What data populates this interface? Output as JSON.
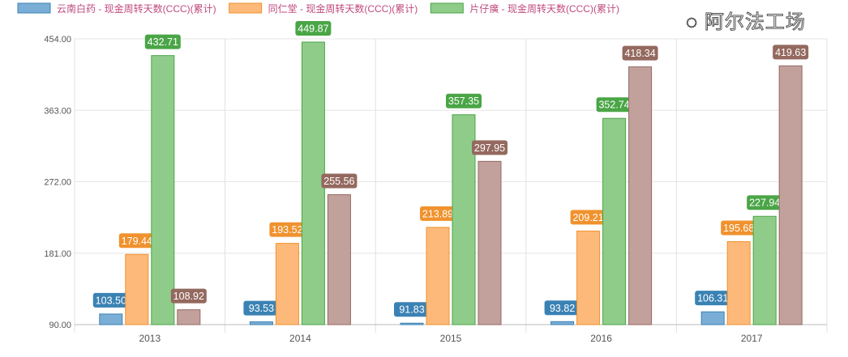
{
  "chart_data": {
    "type": "bar",
    "categories": [
      "2013",
      "2014",
      "2015",
      "2016",
      "2017"
    ],
    "ylim": [
      90,
      454
    ],
    "yticks": [
      "90.00",
      "181.00",
      "272.00",
      "363.00",
      "454.00"
    ],
    "grid": true,
    "legend_position": "top-left",
    "series": [
      {
        "name": "云南白药 - 现金周转天数(CCC)(累计)",
        "color": "#7aaed6",
        "label_color": "#3b82b4",
        "values": [
          103.5,
          93.53,
          91.83,
          93.82,
          106.31
        ]
      },
      {
        "name": "同仁堂 - 现金周转天数(CCC)(累计)",
        "color": "#fdb97a",
        "label_color": "#f0922e",
        "values": [
          179.44,
          193.52,
          213.89,
          209.21,
          195.68
        ]
      },
      {
        "name": "片仔癀 - 现金周转天数(CCC)(累计)",
        "color": "#8fcc8a",
        "label_color": "#4aa546",
        "values": [
          432.71,
          449.87,
          357.35,
          352.74,
          227.94
        ]
      },
      {
        "color": "#c2a19d",
        "label_color": "#94695f",
        "values": [
          108.92,
          255.56,
          297.95,
          418.34,
          419.63
        ]
      }
    ]
  },
  "watermark": "阿尔法工场"
}
